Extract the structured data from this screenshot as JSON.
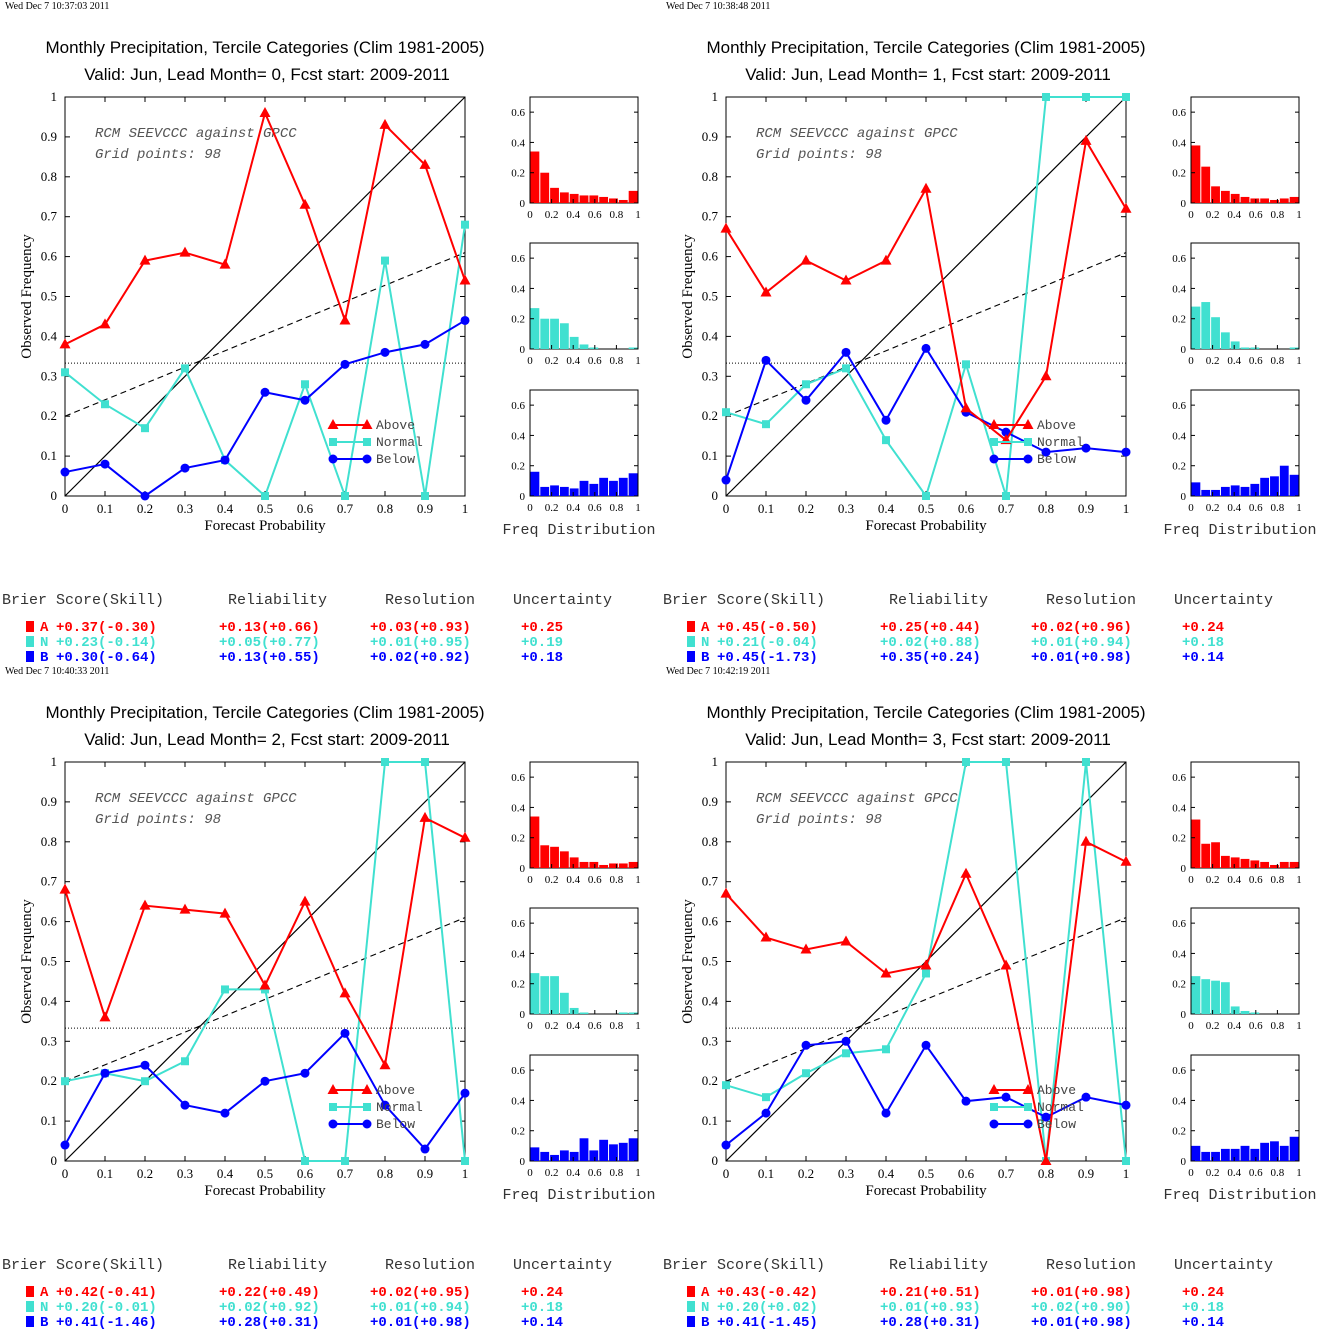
{
  "colors": {
    "above": "#ff0000",
    "normal": "#40e0d0",
    "below": "#0000ff"
  },
  "common": {
    "xlabel": "Forecast Probability",
    "ylabel": "Observed Frequency",
    "annot1": "RCM SEEVCCC against GPCC",
    "annot2": "Grid points:    98",
    "legend": [
      "Above",
      "Normal",
      "Below"
    ],
    "freq_label": "Freq Distribution",
    "score_headers": [
      "Brier Score(Skill)",
      "Reliability",
      "Resolution",
      "Uncertainty"
    ],
    "score_letters": [
      "A",
      "N",
      "B"
    ],
    "x_ticks": [
      "0",
      "0.1",
      "0.2",
      "0.3",
      "0.4",
      "0.5",
      "0.6",
      "0.7",
      "0.8",
      "0.9",
      "1"
    ],
    "y_ticks": [
      "0",
      "0.1",
      "0.2",
      "0.3",
      "0.4",
      "0.5",
      "0.6",
      "0.7",
      "0.8",
      "0.9",
      "1"
    ],
    "hist_x_ticks": [
      "0",
      "0.2",
      "0.4",
      "0.6",
      "0.8",
      "1"
    ],
    "hist_y_ticks": [
      "0",
      "0.2",
      "0.4",
      "0.6"
    ]
  },
  "panels": [
    {
      "timestamp": "Wed Dec  7 10:37:03 2011",
      "title1": "Monthly Precipitation, Tercile Categories (Clim 1981-2005)",
      "title2": "Valid: Jun, Lead Month= 0, Fcst start: 2009-2011",
      "scores": [
        [
          "+0.37(-0.30)",
          "+0.13(+0.66)",
          "+0.03(+0.93)",
          "+0.25"
        ],
        [
          "+0.23(-0.14)",
          "+0.05(+0.77)",
          "+0.01(+0.95)",
          "+0.19"
        ],
        [
          "+0.30(-0.64)",
          "+0.13(+0.55)",
          "+0.02(+0.92)",
          "+0.18"
        ]
      ]
    },
    {
      "timestamp": "Wed Dec  7 10:38:48 2011",
      "title1": "Monthly Precipitation, Tercile Categories (Clim 1981-2005)",
      "title2": "Valid: Jun, Lead Month= 1, Fcst start: 2009-2011",
      "scores": [
        [
          "+0.45(-0.50)",
          "+0.25(+0.44)",
          "+0.02(+0.96)",
          "+0.24"
        ],
        [
          "+0.21(-0.04)",
          "+0.02(+0.88)",
          "+0.01(+0.94)",
          "+0.18"
        ],
        [
          "+0.45(-1.73)",
          "+0.35(+0.24)",
          "+0.01(+0.98)",
          "+0.14"
        ]
      ]
    },
    {
      "timestamp": "Wed Dec  7 10:40:33 2011",
      "title1": "Monthly Precipitation, Tercile Categories (Clim 1981-2005)",
      "title2": "Valid: Jun, Lead Month= 2, Fcst start: 2009-2011",
      "scores": [
        [
          "+0.42(-0.41)",
          "+0.22(+0.49)",
          "+0.02(+0.95)",
          "+0.24"
        ],
        [
          "+0.20(-0.01)",
          "+0.02(+0.92)",
          "+0.01(+0.94)",
          "+0.18"
        ],
        [
          "+0.41(-1.46)",
          "+0.28(+0.31)",
          "+0.01(+0.98)",
          "+0.14"
        ]
      ]
    },
    {
      "timestamp": "Wed Dec  7 10:42:19 2011",
      "title1": "Monthly Precipitation, Tercile Categories (Clim 1981-2005)",
      "title2": "Valid: Jun, Lead Month= 3, Fcst start: 2009-2011",
      "scores": [
        [
          "+0.43(-0.42)",
          "+0.21(+0.51)",
          "+0.01(+0.98)",
          "+0.24"
        ],
        [
          "+0.20(+0.02)",
          "+0.01(+0.93)",
          "+0.02(+0.90)",
          "+0.18"
        ],
        [
          "+0.41(-1.45)",
          "+0.28(+0.31)",
          "+0.01(+0.98)",
          "+0.14"
        ]
      ]
    }
  ],
  "chart_data": [
    {
      "type": "line",
      "title": "Monthly Precipitation, Tercile Categories (Clim 1981-2005) / Valid: Jun, Lead Month= 0, Fcst start: 2009-2011",
      "xlabel": "Forecast Probability",
      "ylabel": "Observed Frequency",
      "xlim": [
        0,
        1
      ],
      "ylim": [
        0,
        1
      ],
      "x": [
        0,
        0.1,
        0.2,
        0.3,
        0.4,
        0.5,
        0.6,
        0.7,
        0.8,
        0.9,
        1
      ],
      "series": [
        {
          "name": "Above",
          "values": [
            0.38,
            0.43,
            0.59,
            0.61,
            0.58,
            0.96,
            0.73,
            0.44,
            0.93,
            0.83,
            0.54
          ]
        },
        {
          "name": "Normal",
          "values": [
            0.31,
            0.23,
            0.17,
            0.32,
            0.09,
            0.0,
            0.28,
            0.0,
            0.59,
            0.0,
            0.68
          ]
        },
        {
          "name": "Below",
          "values": [
            0.06,
            0.08,
            0.0,
            0.07,
            0.09,
            0.26,
            0.24,
            0.33,
            0.36,
            0.38,
            0.44
          ]
        }
      ],
      "reference_lines": {
        "diagonal": [
          [
            0,
            0
          ],
          [
            1,
            1
          ]
        ],
        "dashed": [
          [
            0,
            0.2
          ],
          [
            1,
            0.61
          ]
        ],
        "climatology": 0.333
      },
      "freq_distribution": {
        "x": [
          0,
          0.1,
          0.2,
          0.3,
          0.4,
          0.5,
          0.6,
          0.7,
          0.8,
          0.9,
          1
        ],
        "Above": [
          0.34,
          0.2,
          0.1,
          0.07,
          0.06,
          0.05,
          0.05,
          0.04,
          0.03,
          0.02,
          0.08
        ],
        "Normal": [
          0.27,
          0.2,
          0.2,
          0.17,
          0.08,
          0.03,
          0.01,
          0.0,
          0.0,
          0.0,
          0.01
        ],
        "Below": [
          0.16,
          0.06,
          0.07,
          0.06,
          0.05,
          0.1,
          0.08,
          0.12,
          0.1,
          0.12,
          0.15
        ]
      }
    },
    {
      "type": "line",
      "title": "Monthly Precipitation, Tercile Categories (Clim 1981-2005) / Valid: Jun, Lead Month= 1, Fcst start: 2009-2011",
      "xlabel": "Forecast Probability",
      "ylabel": "Observed Frequency",
      "xlim": [
        0,
        1
      ],
      "ylim": [
        0,
        1
      ],
      "x": [
        0,
        0.1,
        0.2,
        0.3,
        0.4,
        0.5,
        0.6,
        0.7,
        0.8,
        0.9,
        1
      ],
      "series": [
        {
          "name": "Above",
          "values": [
            0.67,
            0.51,
            0.59,
            0.54,
            0.59,
            0.77,
            0.22,
            0.14,
            0.3,
            0.89,
            0.72
          ]
        },
        {
          "name": "Normal",
          "values": [
            0.21,
            0.18,
            0.28,
            0.32,
            0.14,
            0.0,
            0.33,
            0.0,
            1.0,
            1.0,
            1.0
          ]
        },
        {
          "name": "Below",
          "values": [
            0.04,
            0.34,
            0.24,
            0.36,
            0.19,
            0.37,
            0.21,
            0.16,
            0.11,
            0.12,
            0.11
          ]
        }
      ],
      "reference_lines": {
        "diagonal": [
          [
            0,
            0
          ],
          [
            1,
            1
          ]
        ],
        "dashed": [
          [
            0,
            0.2
          ],
          [
            1,
            0.61
          ]
        ],
        "climatology": 0.333
      },
      "freq_distribution": {
        "x": [
          0,
          0.1,
          0.2,
          0.3,
          0.4,
          0.5,
          0.6,
          0.7,
          0.8,
          0.9,
          1
        ],
        "Above": [
          0.38,
          0.24,
          0.11,
          0.08,
          0.06,
          0.04,
          0.03,
          0.03,
          0.02,
          0.03,
          0.04
        ],
        "Normal": [
          0.28,
          0.31,
          0.21,
          0.11,
          0.05,
          0.01,
          0.01,
          0.0,
          0.0,
          0.0,
          0.01
        ],
        "Below": [
          0.09,
          0.04,
          0.04,
          0.06,
          0.07,
          0.06,
          0.08,
          0.12,
          0.13,
          0.2,
          0.14
        ]
      }
    },
    {
      "type": "line",
      "title": "Monthly Precipitation, Tercile Categories (Clim 1981-2005) / Valid: Jun, Lead Month= 2, Fcst start: 2009-2011",
      "xlabel": "Forecast Probability",
      "ylabel": "Observed Frequency",
      "xlim": [
        0,
        1
      ],
      "ylim": [
        0,
        1
      ],
      "x": [
        0,
        0.1,
        0.2,
        0.3,
        0.4,
        0.5,
        0.6,
        0.7,
        0.8,
        0.9,
        1
      ],
      "series": [
        {
          "name": "Above",
          "values": [
            0.68,
            0.36,
            0.64,
            0.63,
            0.62,
            0.44,
            0.65,
            0.42,
            0.24,
            0.86,
            0.81
          ]
        },
        {
          "name": "Normal",
          "values": [
            0.2,
            0.22,
            0.2,
            0.25,
            0.43,
            0.43,
            0.0,
            0.0,
            1.0,
            1.0,
            0.0
          ]
        },
        {
          "name": "Below",
          "values": [
            0.04,
            0.22,
            0.24,
            0.14,
            0.12,
            0.2,
            0.22,
            0.32,
            0.14,
            0.03,
            0.17
          ]
        }
      ],
      "reference_lines": {
        "diagonal": [
          [
            0,
            0
          ],
          [
            1,
            1
          ]
        ],
        "dashed": [
          [
            0,
            0.2
          ],
          [
            1,
            0.61
          ]
        ],
        "climatology": 0.333
      },
      "freq_distribution": {
        "x": [
          0,
          0.1,
          0.2,
          0.3,
          0.4,
          0.5,
          0.6,
          0.7,
          0.8,
          0.9,
          1
        ],
        "Above": [
          0.34,
          0.15,
          0.14,
          0.11,
          0.07,
          0.04,
          0.04,
          0.02,
          0.03,
          0.03,
          0.04
        ],
        "Normal": [
          0.27,
          0.25,
          0.25,
          0.14,
          0.04,
          0.01,
          0.0,
          0.0,
          0.0,
          0.01,
          0.01
        ],
        "Below": [
          0.09,
          0.06,
          0.04,
          0.07,
          0.06,
          0.15,
          0.07,
          0.14,
          0.11,
          0.12,
          0.15
        ]
      }
    },
    {
      "type": "line",
      "title": "Monthly Precipitation, Tercile Categories (Clim 1981-2005) / Valid: Jun, Lead Month= 3, Fcst start: 2009-2011",
      "xlabel": "Forecast Probability",
      "ylabel": "Observed Frequency",
      "xlim": [
        0,
        1
      ],
      "ylim": [
        0,
        1
      ],
      "x": [
        0,
        0.1,
        0.2,
        0.3,
        0.4,
        0.5,
        0.6,
        0.7,
        0.8,
        0.9,
        1
      ],
      "series": [
        {
          "name": "Above",
          "values": [
            0.67,
            0.56,
            0.53,
            0.55,
            0.47,
            0.49,
            0.72,
            0.49,
            0.0,
            0.8,
            0.75
          ]
        },
        {
          "name": "Normal",
          "values": [
            0.19,
            0.16,
            0.22,
            0.27,
            0.28,
            0.47,
            1.0,
            1.0,
            0.0,
            1.0,
            0.0
          ]
        },
        {
          "name": "Below",
          "values": [
            0.04,
            0.12,
            0.29,
            0.3,
            0.12,
            0.29,
            0.15,
            0.16,
            0.11,
            0.16,
            0.14
          ]
        }
      ],
      "reference_lines": {
        "diagonal": [
          [
            0,
            0
          ],
          [
            1,
            1
          ]
        ],
        "dashed": [
          [
            0,
            0.2
          ],
          [
            1,
            0.61
          ]
        ],
        "climatology": 0.333
      },
      "freq_distribution": {
        "x": [
          0,
          0.1,
          0.2,
          0.3,
          0.4,
          0.5,
          0.6,
          0.7,
          0.8,
          0.9,
          1
        ],
        "Above": [
          0.32,
          0.16,
          0.17,
          0.08,
          0.07,
          0.06,
          0.05,
          0.04,
          0.02,
          0.04,
          0.04
        ],
        "Normal": [
          0.25,
          0.23,
          0.22,
          0.21,
          0.05,
          0.02,
          0.01,
          0.0,
          0.0,
          0.0,
          0.0
        ],
        "Below": [
          0.1,
          0.06,
          0.06,
          0.08,
          0.08,
          0.1,
          0.08,
          0.12,
          0.13,
          0.1,
          0.16
        ]
      }
    }
  ]
}
